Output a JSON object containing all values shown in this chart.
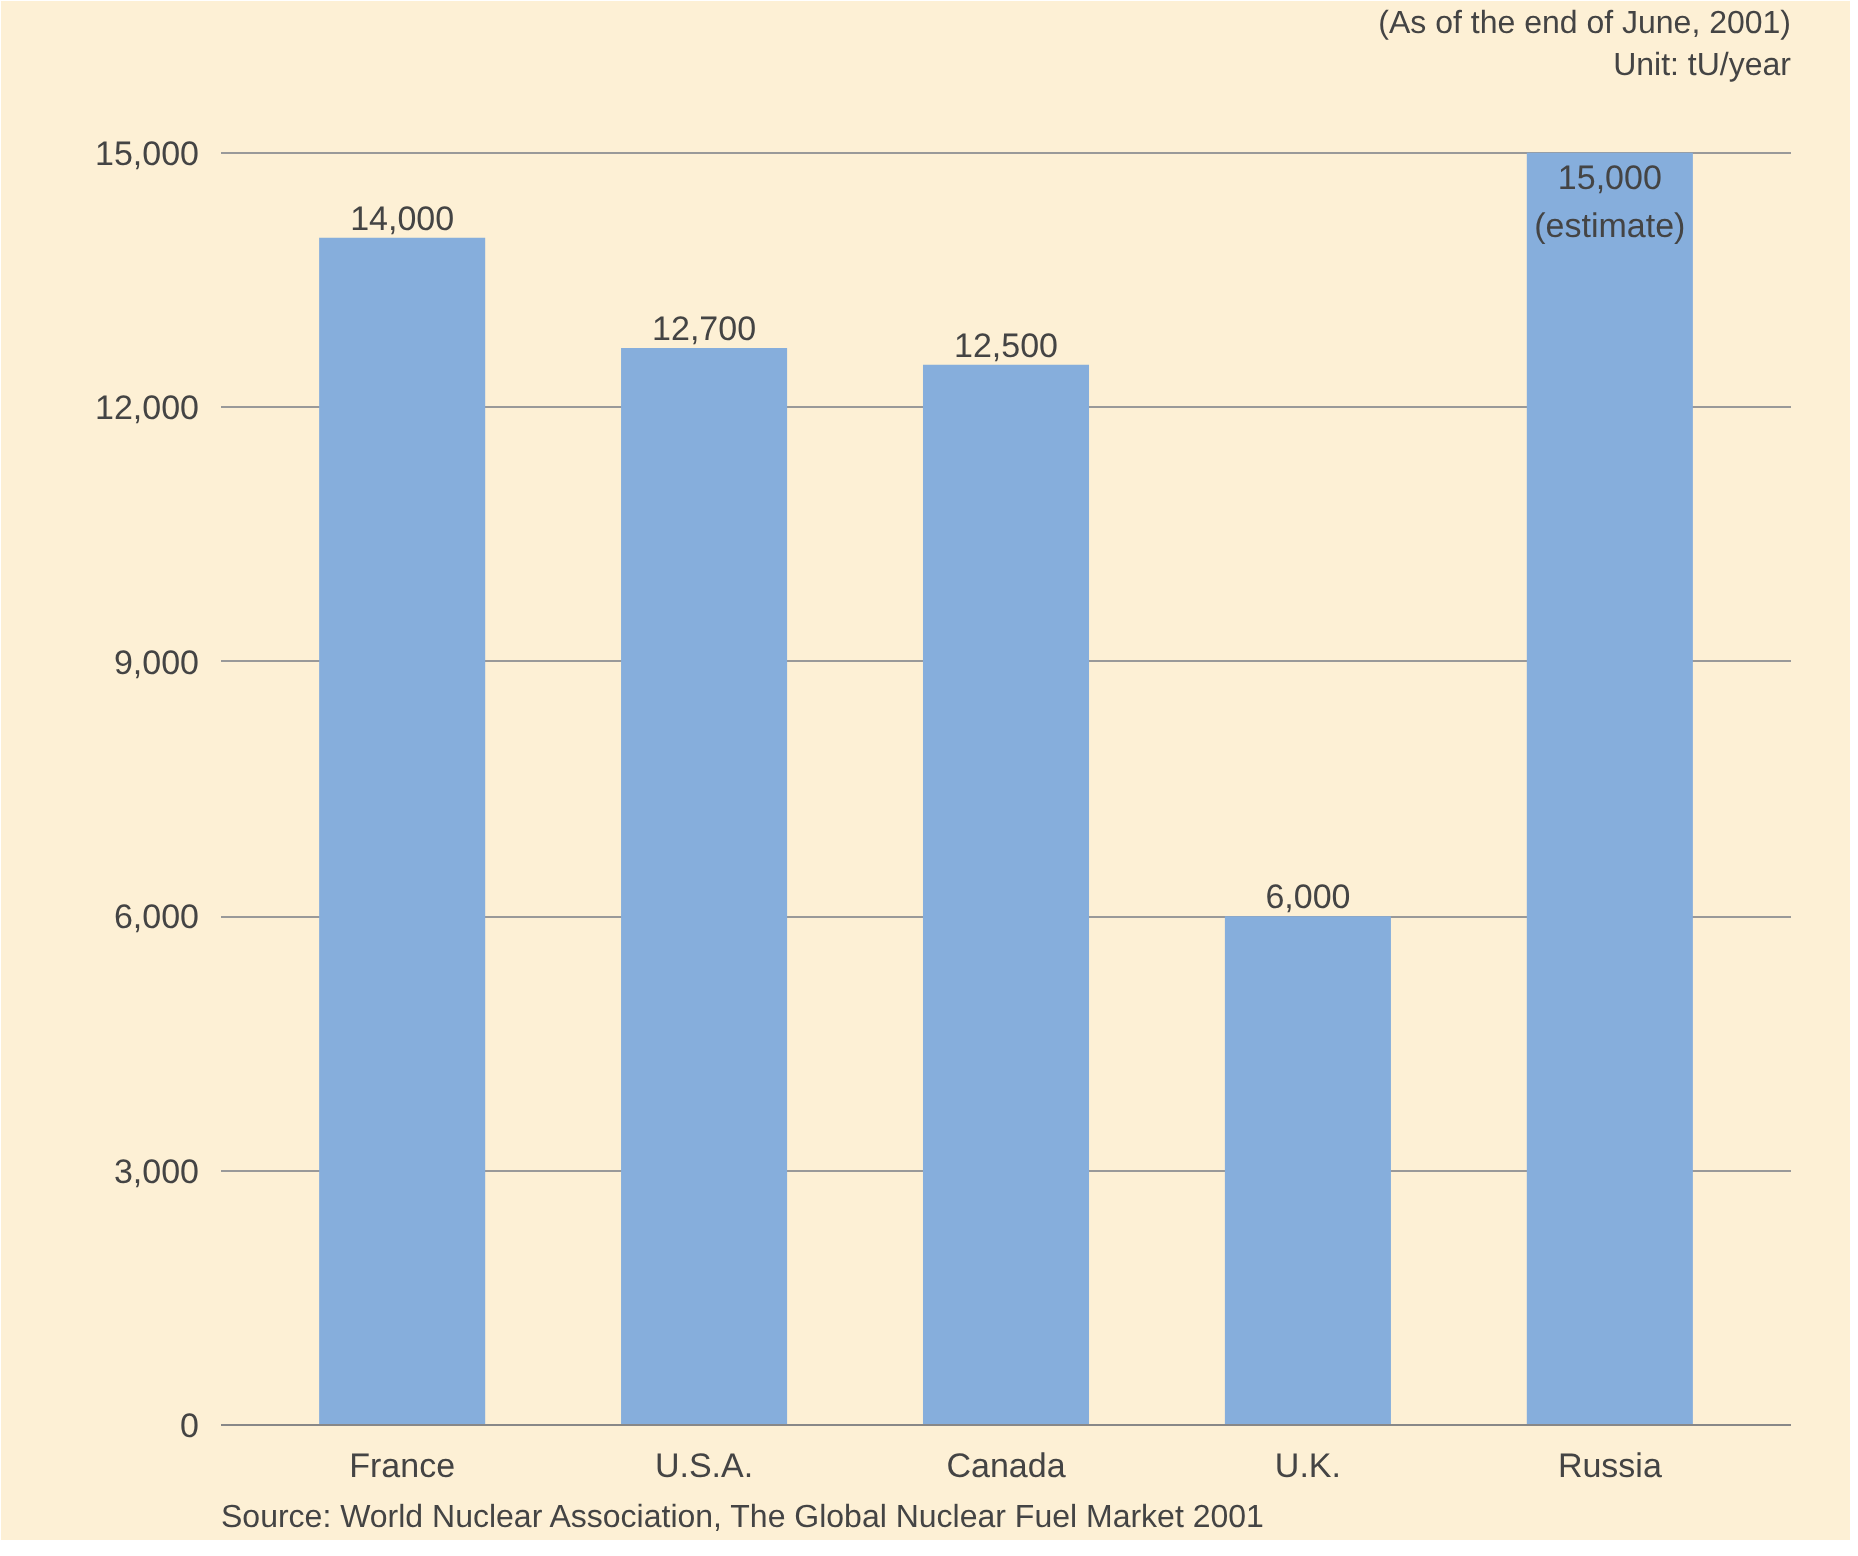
{
  "chart_data": {
    "type": "bar",
    "categories": [
      "France",
      "U.S.A.",
      "Canada",
      "U.K.",
      "Russia"
    ],
    "values": [
      14000,
      12700,
      12500,
      6000,
      15000
    ],
    "value_labels": [
      "14,000",
      "12,700",
      "12,500",
      "6,000",
      "15,000\n(estimate)"
    ],
    "color": "#86aedc",
    "ylim": [
      0,
      15800
    ],
    "yticks": [
      {
        "value": 0,
        "label": "0"
      },
      {
        "value": 3000,
        "label": "3,000"
      },
      {
        "value": 6000,
        "label": "6,000"
      },
      {
        "value": 9000,
        "label": "9,000"
      },
      {
        "value": 12000,
        "label": "12,000"
      },
      {
        "value": 15000,
        "label": "15,000"
      }
    ],
    "grid": "y",
    "annotations": [
      "(As of the end of June, 2001)",
      "Unit: tU/year",
      "Source: World Nuclear Association, The Global Nuclear Fuel Market 2001"
    ]
  }
}
